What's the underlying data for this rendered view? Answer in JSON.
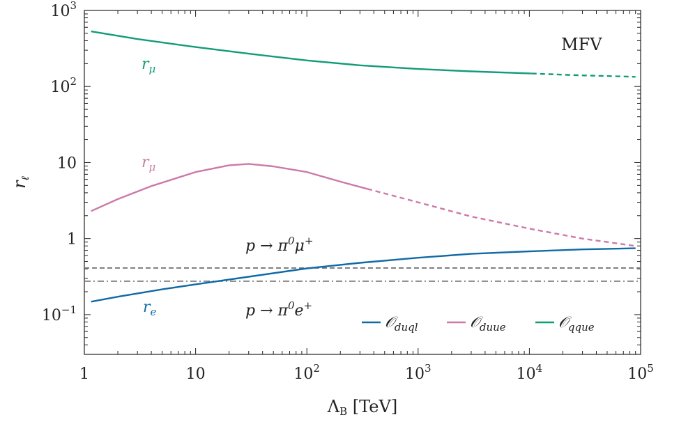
{
  "chart_data": {
    "type": "line",
    "x_scale": "log",
    "y_scale": "log",
    "xlim": [
      1,
      100000
    ],
    "ylim": [
      0.03,
      1000
    ],
    "xlabel": "Λ_B [TeV]",
    "ylabel": "r_ℓ",
    "x_ticks": [
      {
        "value": 1,
        "label": "1"
      },
      {
        "value": 10,
        "label": "10"
      },
      {
        "value": 100,
        "label": "10^2"
      },
      {
        "value": 1000,
        "label": "10^3"
      },
      {
        "value": 10000,
        "label": "10^4"
      },
      {
        "value": 100000,
        "label": "10^5"
      }
    ],
    "y_ticks": [
      {
        "value": 0.1,
        "label": "10^-1"
      },
      {
        "value": 1,
        "label": "1"
      },
      {
        "value": 10,
        "label": "10"
      },
      {
        "value": 100,
        "label": "10^2"
      },
      {
        "value": 1000,
        "label": "10^3"
      }
    ],
    "series": [
      {
        "name": "O_duql",
        "color": "#0f6aa6",
        "solid": [
          [
            1.15,
            0.148
          ],
          [
            2,
            0.172
          ],
          [
            5,
            0.215
          ],
          [
            10,
            0.25
          ],
          [
            30,
            0.315
          ],
          [
            100,
            0.405
          ],
          [
            300,
            0.48
          ],
          [
            1000,
            0.56
          ],
          [
            3000,
            0.63
          ],
          [
            10000,
            0.68
          ],
          [
            30000,
            0.72
          ],
          [
            90000,
            0.745
          ]
        ],
        "dashed": []
      },
      {
        "name": "O_duue",
        "color": "#cc79a7",
        "solid": [
          [
            1.15,
            2.3
          ],
          [
            2,
            3.3
          ],
          [
            4,
            4.9
          ],
          [
            10,
            7.5
          ],
          [
            20,
            9.2
          ],
          [
            30,
            9.6
          ],
          [
            50,
            8.9
          ],
          [
            100,
            7.5
          ],
          [
            200,
            5.6
          ],
          [
            350,
            4.5
          ]
        ],
        "dashed": [
          [
            350,
            4.5
          ],
          [
            1000,
            3.0
          ],
          [
            3000,
            1.95
          ],
          [
            10000,
            1.35
          ],
          [
            30000,
            1.0
          ],
          [
            90000,
            0.8
          ]
        ]
      },
      {
        "name": "O_qque",
        "color": "#129b77",
        "solid": [
          [
            1.15,
            530
          ],
          [
            3,
            420
          ],
          [
            10,
            330
          ],
          [
            30,
            270
          ],
          [
            100,
            220
          ],
          [
            300,
            190
          ],
          [
            1000,
            170
          ],
          [
            3000,
            158
          ],
          [
            10500,
            148
          ]
        ],
        "dashed": [
          [
            10500,
            148
          ],
          [
            30000,
            140
          ],
          [
            90000,
            134
          ]
        ]
      }
    ],
    "reference_lines": [
      {
        "label": "p → π⁰μ⁺",
        "y": 0.41,
        "style": "dashed",
        "color": "#777777"
      },
      {
        "label": "p → π⁰e⁺",
        "y": 0.275,
        "style": "dashdot",
        "color": "#777777"
      }
    ],
    "annotations": [
      {
        "text": "r_μ",
        "color": "#129b77",
        "near": "O_qque"
      },
      {
        "text": "r_μ",
        "color": "#cc79a7",
        "near": "O_duue"
      },
      {
        "text": "r_e",
        "color": "#0f6aa6",
        "near": "O_duql"
      },
      {
        "text": "MFV",
        "color": "#222222",
        "near": "top-right"
      }
    ],
    "legend": {
      "position": "bottom-right",
      "entries": [
        {
          "label": "O_duql",
          "color": "#0f6aa6"
        },
        {
          "label": "O_duue",
          "color": "#cc79a7"
        },
        {
          "label": "O_qque",
          "color": "#129b77"
        }
      ]
    },
    "grid": false
  }
}
